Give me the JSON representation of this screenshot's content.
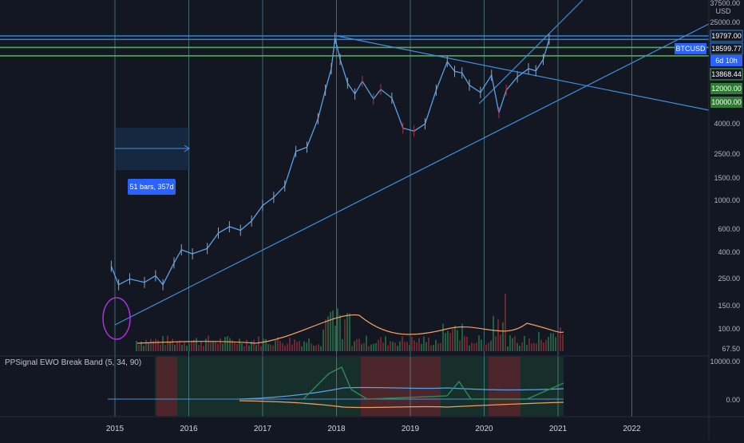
{
  "chart_data": {
    "type": "candlestick",
    "symbol": "BTCUSD",
    "currency": "USD",
    "price_axis": {
      "scale": "log",
      "ticks": [
        "37500.00",
        "25000.00",
        "12000.00",
        "10000.00",
        "4000.00",
        "2500.00",
        "1500.00",
        "1000.00",
        "600.00",
        "400.00",
        "250.00",
        "150.00",
        "100.00",
        "67.50"
      ],
      "labels": [
        {
          "text": "19797.00",
          "style": "blue-outline"
        },
        {
          "text": "18599.77",
          "style": "blue-outline"
        },
        {
          "text": "BTCUSD",
          "style": "blue"
        },
        {
          "text": "6d 10h",
          "style": "blue"
        },
        {
          "text": "13868.44",
          "style": "green-outline"
        },
        {
          "text": "12000.00",
          "style": "green"
        },
        {
          "text": "10000.00",
          "style": "green"
        }
      ]
    },
    "time_axis": {
      "ticks": [
        "2015",
        "2016",
        "2017",
        "2018",
        "2019",
        "2020",
        "2021",
        "2022"
      ]
    },
    "horizontal_levels": [
      {
        "value": 19797,
        "color": "#2e83dd"
      },
      {
        "value": 18600,
        "color": "#2e83dd"
      },
      {
        "value": 16100,
        "color": "#4caf50"
      },
      {
        "value": 13868,
        "color": "#4caf50"
      }
    ],
    "measure_tool": {
      "text": "51 bars, 357d"
    },
    "series": [
      {
        "name": "BTCUSD",
        "points": [
          {
            "x": 2014.95,
            "y": 320
          },
          {
            "x": 2015.05,
            "y": 230
          },
          {
            "x": 2015.2,
            "y": 255
          },
          {
            "x": 2015.4,
            "y": 240
          },
          {
            "x": 2015.55,
            "y": 270
          },
          {
            "x": 2015.65,
            "y": 230
          },
          {
            "x": 2015.8,
            "y": 340
          },
          {
            "x": 2015.9,
            "y": 430
          },
          {
            "x": 2016.05,
            "y": 400
          },
          {
            "x": 2016.25,
            "y": 440
          },
          {
            "x": 2016.4,
            "y": 580
          },
          {
            "x": 2016.55,
            "y": 650
          },
          {
            "x": 2016.7,
            "y": 610
          },
          {
            "x": 2016.85,
            "y": 720
          },
          {
            "x": 2017.0,
            "y": 950
          },
          {
            "x": 2017.15,
            "y": 1100
          },
          {
            "x": 2017.3,
            "y": 1350
          },
          {
            "x": 2017.45,
            "y": 2500
          },
          {
            "x": 2017.6,
            "y": 2700
          },
          {
            "x": 2017.75,
            "y": 4500
          },
          {
            "x": 2017.85,
            "y": 7500
          },
          {
            "x": 2017.93,
            "y": 11000
          },
          {
            "x": 2017.98,
            "y": 19000
          },
          {
            "x": 2018.05,
            "y": 13000
          },
          {
            "x": 2018.15,
            "y": 8500
          },
          {
            "x": 2018.25,
            "y": 7000
          },
          {
            "x": 2018.35,
            "y": 8800
          },
          {
            "x": 2018.5,
            "y": 6400
          },
          {
            "x": 2018.6,
            "y": 7600
          },
          {
            "x": 2018.75,
            "y": 6500
          },
          {
            "x": 2018.9,
            "y": 3800
          },
          {
            "x": 2019.05,
            "y": 3600
          },
          {
            "x": 2019.2,
            "y": 4100
          },
          {
            "x": 2019.35,
            "y": 7500
          },
          {
            "x": 2019.5,
            "y": 12500
          },
          {
            "x": 2019.6,
            "y": 10500
          },
          {
            "x": 2019.7,
            "y": 10200
          },
          {
            "x": 2019.8,
            "y": 8200
          },
          {
            "x": 2019.95,
            "y": 7200
          },
          {
            "x": 2020.1,
            "y": 9800
          },
          {
            "x": 2020.2,
            "y": 5000
          },
          {
            "x": 2020.3,
            "y": 7500
          },
          {
            "x": 2020.45,
            "y": 9500
          },
          {
            "x": 2020.6,
            "y": 11000
          },
          {
            "x": 2020.7,
            "y": 10600
          },
          {
            "x": 2020.8,
            "y": 13000
          },
          {
            "x": 2020.88,
            "y": 18600
          }
        ]
      }
    ],
    "indicator": {
      "title": "PPSignal EWO Break Band (5, 34, 90)",
      "ticks": [
        "10000.00",
        "0.00"
      ]
    }
  }
}
